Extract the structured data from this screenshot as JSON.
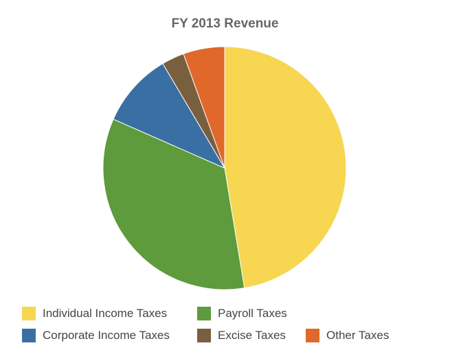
{
  "chart_data": {
    "type": "pie",
    "title": "FY 2013 Revenue",
    "legend_position": "bottom",
    "start_angle": "12 o'clock",
    "direction": "clockwise",
    "series": [
      {
        "name": "Individual Income Taxes",
        "value": 47.4,
        "color": "#F7D652"
      },
      {
        "name": "Payroll Taxes",
        "value": 34.2,
        "color": "#5E9B3C"
      },
      {
        "name": "Corporate Income Taxes",
        "value": 9.9,
        "color": "#3A6FA3"
      },
      {
        "name": "Excise Taxes",
        "value": 3.0,
        "color": "#7A5F3F"
      },
      {
        "name": "Other Taxes",
        "value": 5.5,
        "color": "#E0682A"
      }
    ]
  }
}
